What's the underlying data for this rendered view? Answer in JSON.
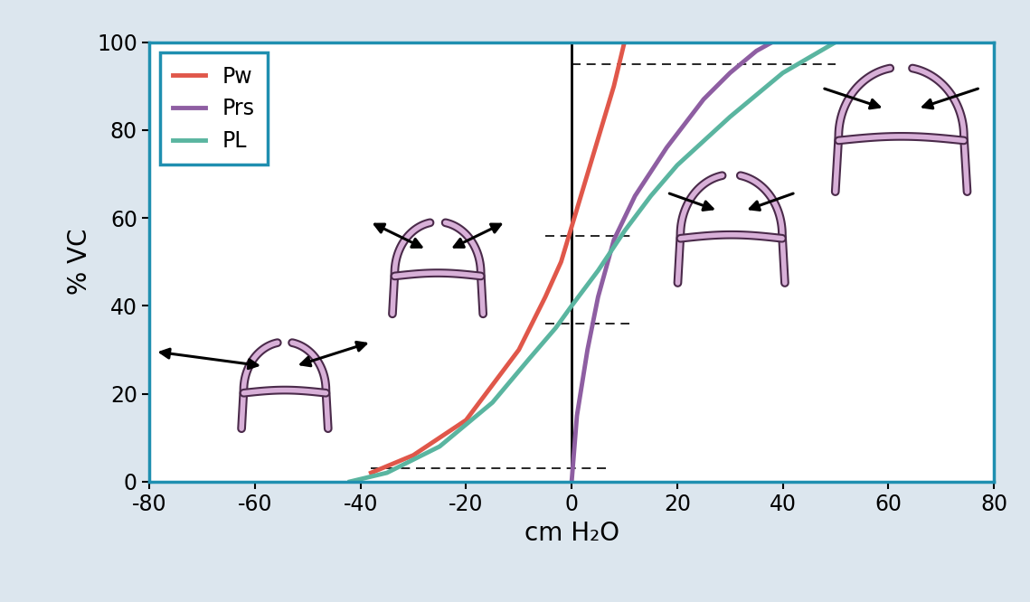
{
  "chart_data": {
    "type": "line",
    "x_label": "cm H₂O",
    "y_label": "% VC",
    "series": [
      {
        "name": "Pw",
        "color": "#e0574a",
        "x": [
          -38,
          -30,
          -20,
          -10,
          -5,
          -2,
          0,
          3,
          6,
          8,
          10
        ],
        "values": [
          2,
          6,
          14,
          30,
          42,
          50,
          58,
          70,
          82,
          90,
          100
        ]
      },
      {
        "name": "Prs",
        "color": "#8e5ea2",
        "x": [
          0,
          1,
          3,
          5,
          8,
          12,
          18,
          25,
          30,
          35,
          38
        ],
        "values": [
          0,
          15,
          30,
          42,
          55,
          65,
          76,
          87,
          93,
          98,
          100
        ]
      },
      {
        "name": "PL",
        "color": "#5ab5a0",
        "x": [
          -42,
          -35,
          -25,
          -15,
          -8,
          -3,
          0,
          5,
          10,
          15,
          20,
          30,
          40,
          50
        ],
        "values": [
          0,
          2,
          8,
          18,
          28,
          35,
          40,
          48,
          57,
          65,
          72,
          83,
          93,
          100
        ]
      }
    ],
    "xlim": [
      -80,
      80
    ],
    "xticks": [
      -80,
      -60,
      -40,
      -20,
      0,
      20,
      40,
      60,
      80
    ],
    "ylim": [
      0,
      100
    ],
    "yticks": [
      0,
      20,
      40,
      60,
      80,
      100
    ],
    "legend": "upper left",
    "grid": false,
    "reference_lines": {
      "horizontal": [
        {
          "y": 3,
          "x": [
            -38,
            7
          ]
        },
        {
          "y": 36,
          "x": [
            -5,
            11
          ]
        },
        {
          "y": 56,
          "x": [
            -5,
            12
          ]
        },
        {
          "y": 95,
          "x": [
            0,
            50
          ]
        }
      ],
      "vertical": [
        0
      ]
    }
  }
}
